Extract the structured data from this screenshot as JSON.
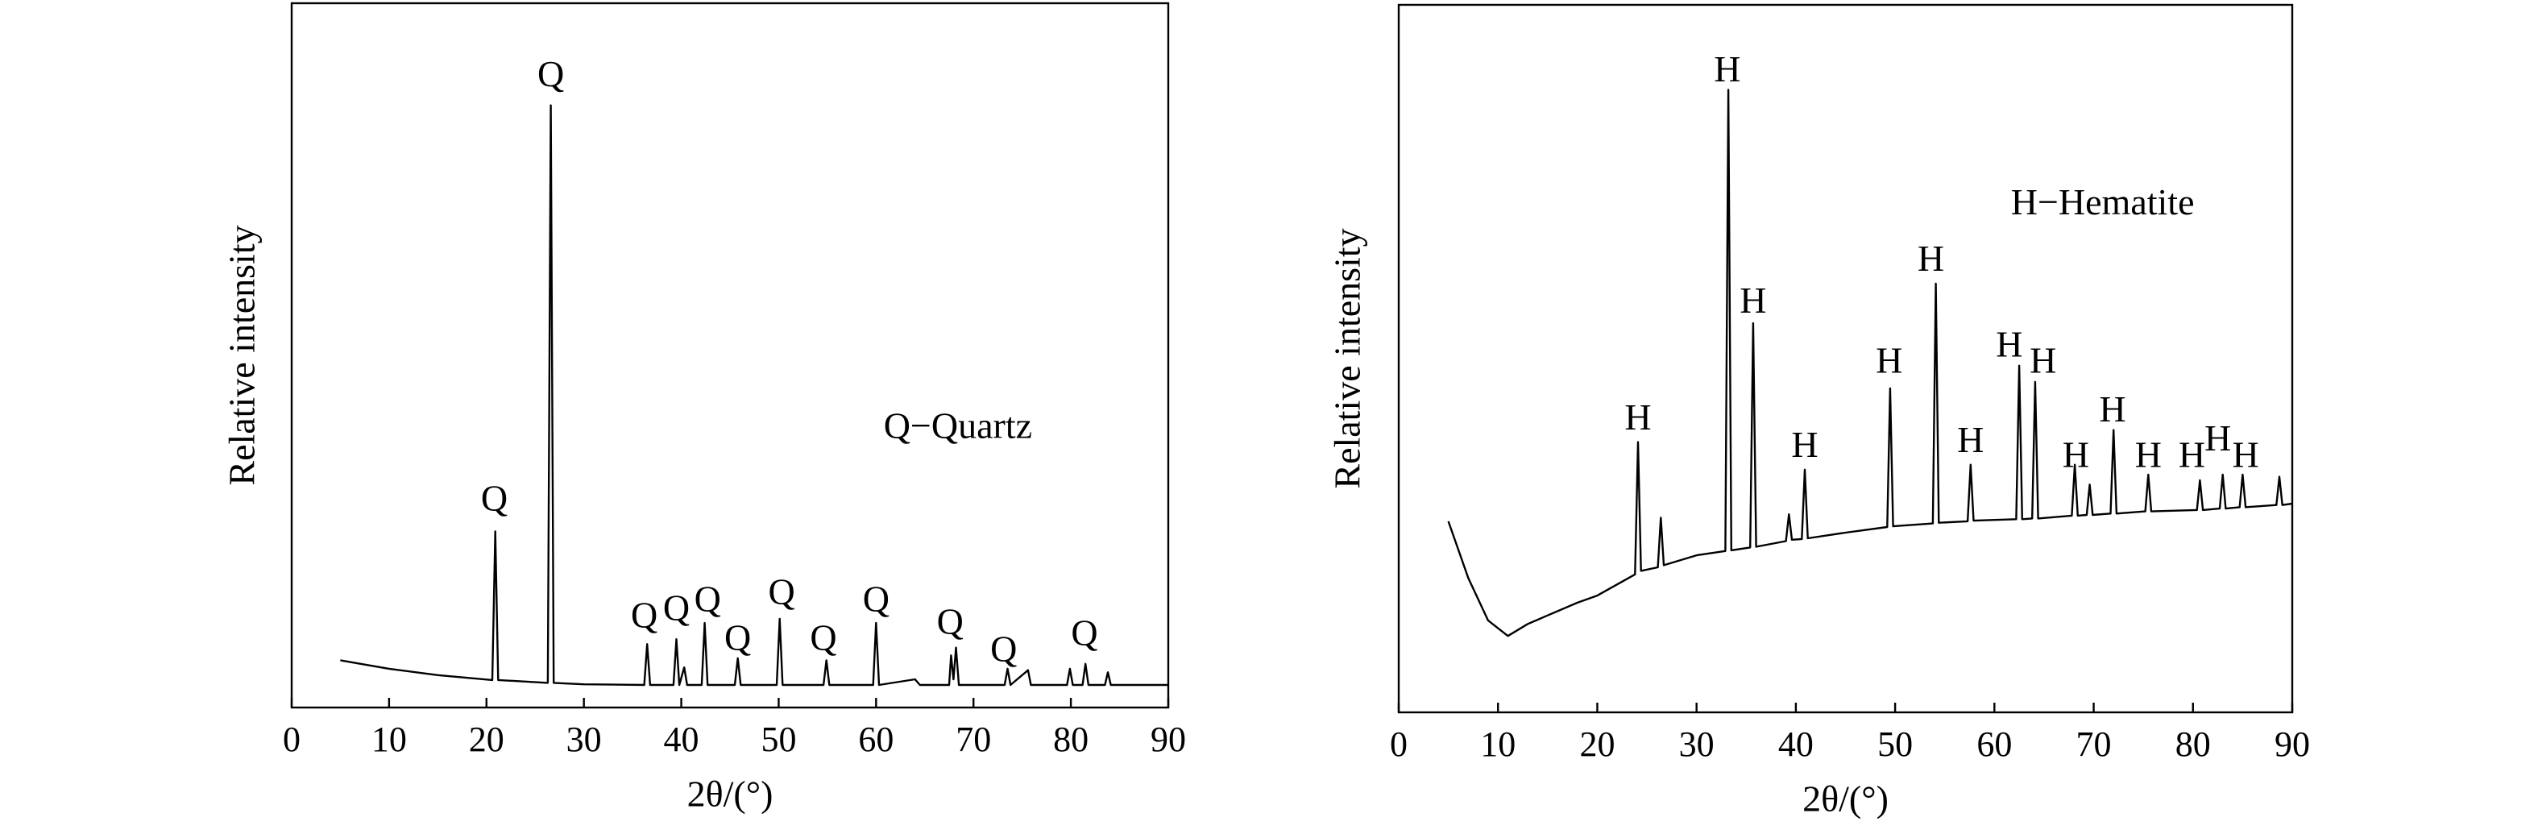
{
  "chart_data": [
    {
      "type": "line",
      "x_label": "2θ/(°)",
      "y_label": "Relative intensity",
      "color": "#000000",
      "xlim": [
        0,
        90
      ],
      "ylim": [
        0,
        100
      ],
      "xticks": [
        0,
        10,
        20,
        30,
        40,
        50,
        60,
        70,
        80,
        90
      ],
      "series": [
        {
          "name": "Q−Quartz",
          "x": [
            5,
            10,
            15,
            20.6,
            20.9,
            21.2,
            26.3,
            26.6,
            26.9,
            30,
            36.2,
            36.5,
            36.8,
            39.2,
            39.5,
            39.8,
            40.3,
            40.6,
            42.1,
            42.4,
            42.7,
            45.5,
            45.8,
            46.1,
            49.8,
            50.1,
            50.4,
            54.6,
            54.9,
            55.2,
            59.7,
            60,
            60.3,
            64,
            64.5,
            67.5,
            67.7,
            67.95,
            68.2,
            68.5,
            73.2,
            73.5,
            73.8,
            75.6,
            75.9,
            79.6,
            79.9,
            80.2,
            81.2,
            81.5,
            81.8,
            83.5,
            83.8,
            84.1,
            90
          ],
          "values": [
            6.7,
            5.5,
            4.6,
            3.9,
            25,
            3.9,
            3.5,
            85.5,
            3.5,
            3.3,
            3.2,
            9,
            3.2,
            3.2,
            9.7,
            3.2,
            5.7,
            3.2,
            3.2,
            12,
            3.2,
            3.2,
            7,
            3.2,
            3.2,
            12.6,
            3.2,
            3.2,
            6.7,
            3.2,
            3.2,
            12,
            3.2,
            4,
            3.2,
            3.2,
            7.4,
            4,
            8.5,
            3.2,
            3.2,
            5.5,
            3.2,
            5.3,
            3.2,
            3.2,
            5.5,
            3.2,
            3.2,
            6.2,
            3.2,
            3.2,
            5,
            3.2,
            3.2
          ]
        }
      ],
      "annotations": [
        {
          "text": "Q",
          "x": 26.6,
          "y": 89.4
        },
        {
          "text": "Q",
          "x": 20.8,
          "y": 29.2
        },
        {
          "text": "Q",
          "x": 36.2,
          "y": 12.6
        },
        {
          "text": "Q",
          "x": 39.5,
          "y": 13.6
        },
        {
          "text": "Q",
          "x": 42.7,
          "y": 14.9
        },
        {
          "text": "Q",
          "x": 45.8,
          "y": 9.4
        },
        {
          "text": "Q",
          "x": 50.3,
          "y": 15.9
        },
        {
          "text": "Q",
          "x": 54.6,
          "y": 9.4
        },
        {
          "text": "Q",
          "x": 60.0,
          "y": 14.9
        },
        {
          "text": "Q",
          "x": 67.6,
          "y": 11.7
        },
        {
          "text": "Q",
          "x": 73.1,
          "y": 7.8
        },
        {
          "text": "Q",
          "x": 81.4,
          "y": 10.1
        },
        {
          "text": "Q−Quartz",
          "x": 68.4,
          "y": 39.5
        }
      ]
    },
    {
      "type": "line",
      "x_label": "2θ/(°)",
      "y_label": "Relative intensity",
      "color": "#000000",
      "xlim": [
        0,
        90
      ],
      "ylim": [
        0,
        100
      ],
      "xticks": [
        0,
        10,
        20,
        30,
        40,
        50,
        60,
        70,
        80,
        90
      ],
      "series": [
        {
          "name": "H−Hematite",
          "x": [
            5,
            7,
            9,
            11,
            13,
            15,
            18,
            20,
            23.8,
            24.1,
            24.4,
            26.1,
            26.4,
            26.7,
            30,
            32.9,
            33.2,
            33.5,
            35.4,
            35.7,
            36,
            39,
            39.3,
            39.6,
            40.6,
            40.9,
            41.2,
            45,
            49.2,
            49.5,
            49.8,
            53.8,
            54.1,
            54.4,
            57.3,
            57.6,
            57.9,
            62.2,
            62.5,
            62.8,
            63.8,
            64.1,
            64.4,
            67.8,
            68.1,
            68.4,
            69.3,
            69.6,
            69.9,
            71.7,
            72,
            72.3,
            75.2,
            75.5,
            75.8,
            80.4,
            80.7,
            81,
            82.7,
            83,
            83.3,
            84.7,
            85,
            85.3,
            88.4,
            88.7,
            89,
            90
          ],
          "values": [
            27,
            19,
            13,
            10.8,
            12.5,
            13.7,
            15.5,
            16.5,
            19.5,
            38.2,
            20,
            20.5,
            27.5,
            20.8,
            22.2,
            22.8,
            88,
            22.9,
            23.3,
            55,
            23.4,
            24.2,
            28,
            24.4,
            24.5,
            34.3,
            24.6,
            25.4,
            26.2,
            45.8,
            26.3,
            26.7,
            60.6,
            26.8,
            27,
            35,
            27.1,
            27.3,
            49,
            27.3,
            27.4,
            46.7,
            27.4,
            27.8,
            35,
            27.8,
            27.9,
            32.2,
            27.9,
            28.1,
            39.9,
            28.1,
            28.4,
            33.6,
            28.4,
            28.6,
            32.8,
            28.6,
            28.8,
            33.6,
            28.8,
            29,
            33.6,
            29,
            29.3,
            33.3,
            29.3,
            29.5
          ]
        }
      ],
      "annotations": [
        {
          "text": "H",
          "x": 33.1,
          "y": 90.4
        },
        {
          "text": "H",
          "x": 24.1,
          "y": 41.2
        },
        {
          "text": "H",
          "x": 35.7,
          "y": 57.7
        },
        {
          "text": "H",
          "x": 40.9,
          "y": 37.3
        },
        {
          "text": "H",
          "x": 49.4,
          "y": 49.2
        },
        {
          "text": "H",
          "x": 53.6,
          "y": 63.6
        },
        {
          "text": "H",
          "x": 57.6,
          "y": 38
        },
        {
          "text": "H",
          "x": 61.5,
          "y": 51.5
        },
        {
          "text": "H",
          "x": 64.9,
          "y": 49.2
        },
        {
          "text": "H",
          "x": 68.2,
          "y": 35.9
        },
        {
          "text": "H",
          "x": 71.9,
          "y": 42.3
        },
        {
          "text": "H",
          "x": 75.5,
          "y": 35.9
        },
        {
          "text": "H",
          "x": 79.9,
          "y": 35.9
        },
        {
          "text": "H",
          "x": 82.5,
          "y": 38.2
        },
        {
          "text": "H",
          "x": 85.3,
          "y": 35.9
        },
        {
          "text": "H−Hematite",
          "x": 70.9,
          "y": 71.6
        }
      ]
    }
  ]
}
